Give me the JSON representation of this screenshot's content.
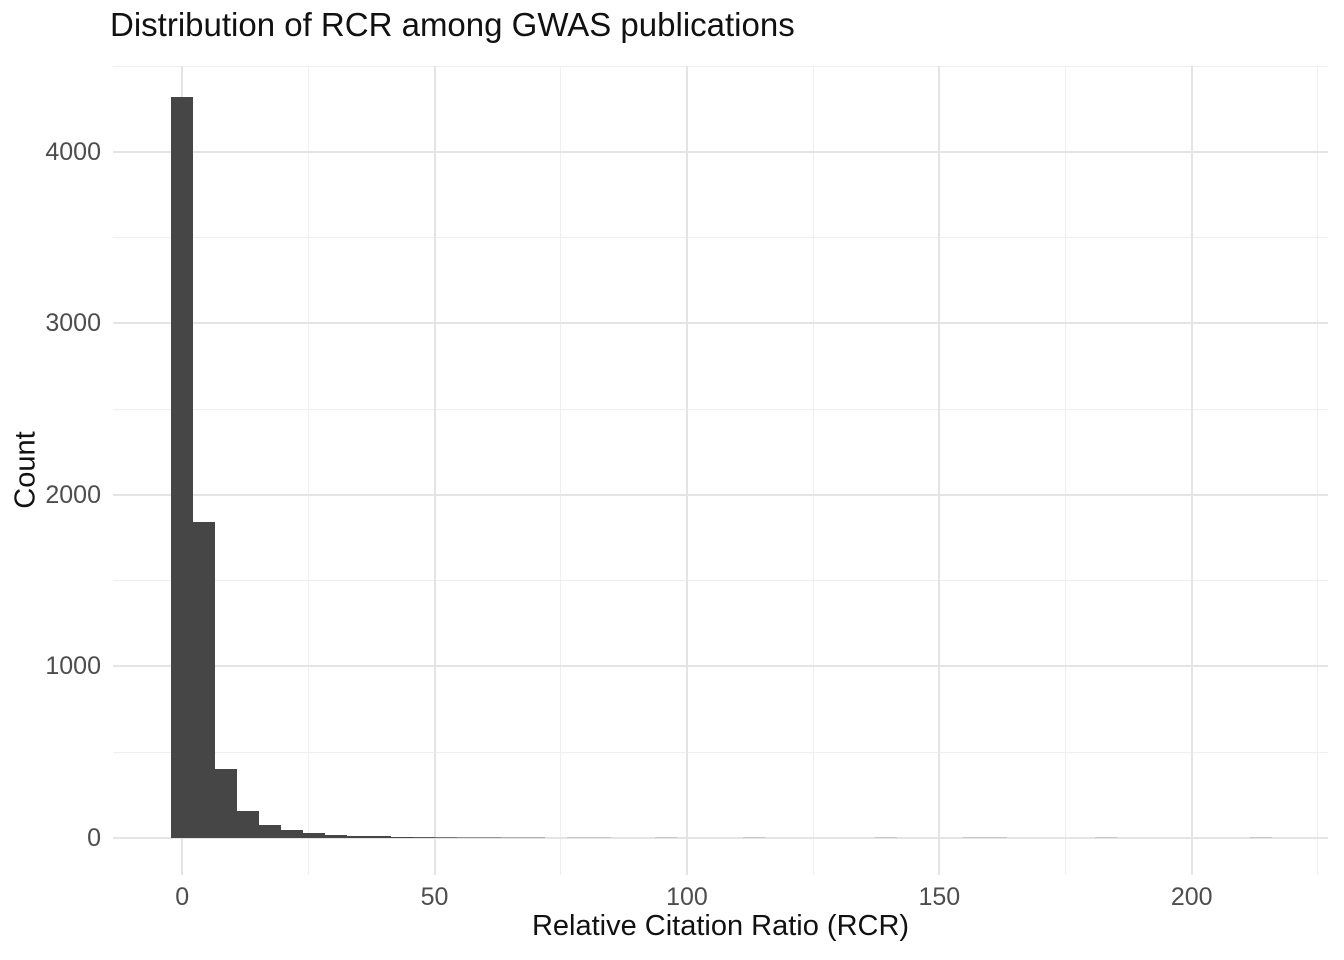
{
  "title": "Distribution of RCR among GWAS publications",
  "colors": {
    "background": "#ffffff",
    "bar_fill": "#464646",
    "grid_major": "#e4e4e4",
    "grid_minor": "#efefef",
    "tick_label": "#4d4d4d",
    "title_text": "#111111",
    "axis_title_text": "#111111"
  },
  "chart_data": {
    "type": "bar",
    "subtype": "histogram",
    "title": "Distribution of RCR among GWAS publications",
    "xlabel": "Relative Citation Ratio (RCR)",
    "ylabel": "Count",
    "legend": false,
    "grid": "major and minor light-gray gridlines, no axis lines, no tick marks (ggplot minimal theme)",
    "x_ticks": [
      0,
      50,
      100,
      150,
      200
    ],
    "y_ticks": [
      0,
      1000,
      2000,
      3000,
      4000
    ],
    "x_minor_gridlines": [
      25,
      75,
      125,
      175,
      225
    ],
    "y_minor_gridlines": [
      500,
      1500,
      2500,
      3500,
      4500
    ],
    "xlim": [
      -13.7,
      227
    ],
    "ylim": [
      -216,
      4501
    ],
    "bin_width": 4.36,
    "first_bin_center": 0,
    "bin_note": "50 bins, centers at k*4.36 for k=0..49, spanning RCR approx -2.2 to 215.8",
    "counts": [
      4320,
      1840,
      400,
      158,
      78,
      45,
      30,
      20,
      14,
      10,
      7,
      5,
      4,
      3,
      3,
      2,
      2,
      0,
      1,
      1,
      0,
      0,
      1,
      0,
      0,
      0,
      1,
      0,
      0,
      0,
      0,
      0,
      1,
      0,
      0,
      0,
      1,
      1,
      0,
      0,
      0,
      0,
      1,
      0,
      0,
      0,
      0,
      0,
      0,
      1
    ]
  }
}
